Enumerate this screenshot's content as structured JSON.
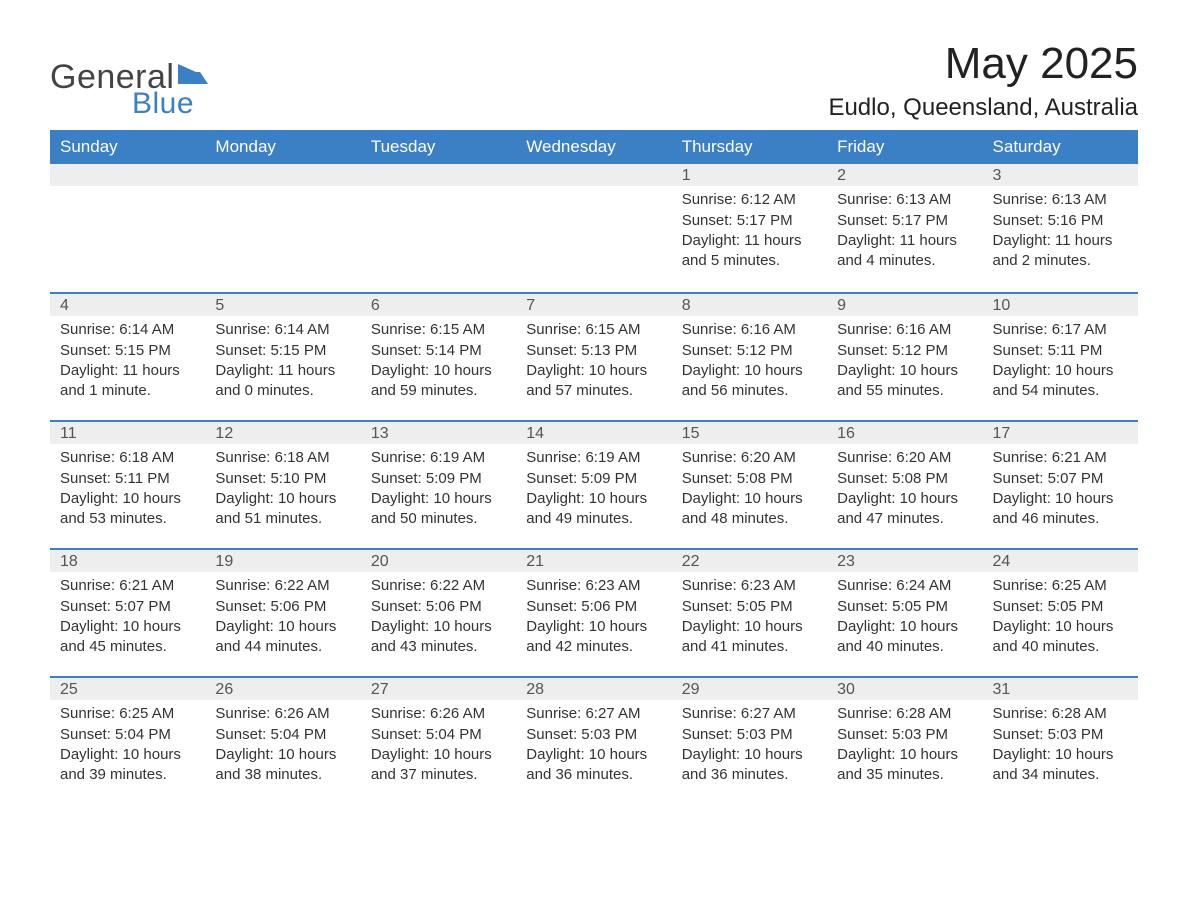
{
  "logo": {
    "text_general": "General",
    "text_blue": "Blue",
    "flag_color": "#3b7fc4"
  },
  "title": "May 2025",
  "location": "Eudlo, Queensland, Australia",
  "colors": {
    "header_bg": "#3b7fc4",
    "header_text": "#ffffff",
    "daynum_bg": "#eeeeee",
    "week_divider": "#3b7fc4",
    "body_text": "#333333",
    "page_bg": "#ffffff"
  },
  "weekdays": [
    "Sunday",
    "Monday",
    "Tuesday",
    "Wednesday",
    "Thursday",
    "Friday",
    "Saturday"
  ],
  "weeks": [
    [
      null,
      null,
      null,
      null,
      {
        "n": "1",
        "sunrise": "Sunrise: 6:12 AM",
        "sunset": "Sunset: 5:17 PM",
        "daylight": "Daylight: 11 hours and 5 minutes."
      },
      {
        "n": "2",
        "sunrise": "Sunrise: 6:13 AM",
        "sunset": "Sunset: 5:17 PM",
        "daylight": "Daylight: 11 hours and 4 minutes."
      },
      {
        "n": "3",
        "sunrise": "Sunrise: 6:13 AM",
        "sunset": "Sunset: 5:16 PM",
        "daylight": "Daylight: 11 hours and 2 minutes."
      }
    ],
    [
      {
        "n": "4",
        "sunrise": "Sunrise: 6:14 AM",
        "sunset": "Sunset: 5:15 PM",
        "daylight": "Daylight: 11 hours and 1 minute."
      },
      {
        "n": "5",
        "sunrise": "Sunrise: 6:14 AM",
        "sunset": "Sunset: 5:15 PM",
        "daylight": "Daylight: 11 hours and 0 minutes."
      },
      {
        "n": "6",
        "sunrise": "Sunrise: 6:15 AM",
        "sunset": "Sunset: 5:14 PM",
        "daylight": "Daylight: 10 hours and 59 minutes."
      },
      {
        "n": "7",
        "sunrise": "Sunrise: 6:15 AM",
        "sunset": "Sunset: 5:13 PM",
        "daylight": "Daylight: 10 hours and 57 minutes."
      },
      {
        "n": "8",
        "sunrise": "Sunrise: 6:16 AM",
        "sunset": "Sunset: 5:12 PM",
        "daylight": "Daylight: 10 hours and 56 minutes."
      },
      {
        "n": "9",
        "sunrise": "Sunrise: 6:16 AM",
        "sunset": "Sunset: 5:12 PM",
        "daylight": "Daylight: 10 hours and 55 minutes."
      },
      {
        "n": "10",
        "sunrise": "Sunrise: 6:17 AM",
        "sunset": "Sunset: 5:11 PM",
        "daylight": "Daylight: 10 hours and 54 minutes."
      }
    ],
    [
      {
        "n": "11",
        "sunrise": "Sunrise: 6:18 AM",
        "sunset": "Sunset: 5:11 PM",
        "daylight": "Daylight: 10 hours and 53 minutes."
      },
      {
        "n": "12",
        "sunrise": "Sunrise: 6:18 AM",
        "sunset": "Sunset: 5:10 PM",
        "daylight": "Daylight: 10 hours and 51 minutes."
      },
      {
        "n": "13",
        "sunrise": "Sunrise: 6:19 AM",
        "sunset": "Sunset: 5:09 PM",
        "daylight": "Daylight: 10 hours and 50 minutes."
      },
      {
        "n": "14",
        "sunrise": "Sunrise: 6:19 AM",
        "sunset": "Sunset: 5:09 PM",
        "daylight": "Daylight: 10 hours and 49 minutes."
      },
      {
        "n": "15",
        "sunrise": "Sunrise: 6:20 AM",
        "sunset": "Sunset: 5:08 PM",
        "daylight": "Daylight: 10 hours and 48 minutes."
      },
      {
        "n": "16",
        "sunrise": "Sunrise: 6:20 AM",
        "sunset": "Sunset: 5:08 PM",
        "daylight": "Daylight: 10 hours and 47 minutes."
      },
      {
        "n": "17",
        "sunrise": "Sunrise: 6:21 AM",
        "sunset": "Sunset: 5:07 PM",
        "daylight": "Daylight: 10 hours and 46 minutes."
      }
    ],
    [
      {
        "n": "18",
        "sunrise": "Sunrise: 6:21 AM",
        "sunset": "Sunset: 5:07 PM",
        "daylight": "Daylight: 10 hours and 45 minutes."
      },
      {
        "n": "19",
        "sunrise": "Sunrise: 6:22 AM",
        "sunset": "Sunset: 5:06 PM",
        "daylight": "Daylight: 10 hours and 44 minutes."
      },
      {
        "n": "20",
        "sunrise": "Sunrise: 6:22 AM",
        "sunset": "Sunset: 5:06 PM",
        "daylight": "Daylight: 10 hours and 43 minutes."
      },
      {
        "n": "21",
        "sunrise": "Sunrise: 6:23 AM",
        "sunset": "Sunset: 5:06 PM",
        "daylight": "Daylight: 10 hours and 42 minutes."
      },
      {
        "n": "22",
        "sunrise": "Sunrise: 6:23 AM",
        "sunset": "Sunset: 5:05 PM",
        "daylight": "Daylight: 10 hours and 41 minutes."
      },
      {
        "n": "23",
        "sunrise": "Sunrise: 6:24 AM",
        "sunset": "Sunset: 5:05 PM",
        "daylight": "Daylight: 10 hours and 40 minutes."
      },
      {
        "n": "24",
        "sunrise": "Sunrise: 6:25 AM",
        "sunset": "Sunset: 5:05 PM",
        "daylight": "Daylight: 10 hours and 40 minutes."
      }
    ],
    [
      {
        "n": "25",
        "sunrise": "Sunrise: 6:25 AM",
        "sunset": "Sunset: 5:04 PM",
        "daylight": "Daylight: 10 hours and 39 minutes."
      },
      {
        "n": "26",
        "sunrise": "Sunrise: 6:26 AM",
        "sunset": "Sunset: 5:04 PM",
        "daylight": "Daylight: 10 hours and 38 minutes."
      },
      {
        "n": "27",
        "sunrise": "Sunrise: 6:26 AM",
        "sunset": "Sunset: 5:04 PM",
        "daylight": "Daylight: 10 hours and 37 minutes."
      },
      {
        "n": "28",
        "sunrise": "Sunrise: 6:27 AM",
        "sunset": "Sunset: 5:03 PM",
        "daylight": "Daylight: 10 hours and 36 minutes."
      },
      {
        "n": "29",
        "sunrise": "Sunrise: 6:27 AM",
        "sunset": "Sunset: 5:03 PM",
        "daylight": "Daylight: 10 hours and 36 minutes."
      },
      {
        "n": "30",
        "sunrise": "Sunrise: 6:28 AM",
        "sunset": "Sunset: 5:03 PM",
        "daylight": "Daylight: 10 hours and 35 minutes."
      },
      {
        "n": "31",
        "sunrise": "Sunrise: 6:28 AM",
        "sunset": "Sunset: 5:03 PM",
        "daylight": "Daylight: 10 hours and 34 minutes."
      }
    ]
  ]
}
